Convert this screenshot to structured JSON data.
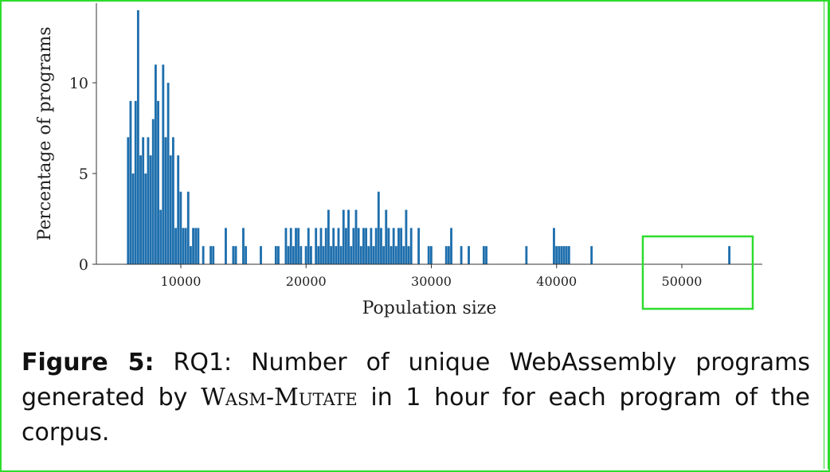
{
  "chart_data": {
    "type": "bar",
    "title": "",
    "xlabel": "Population size",
    "ylabel": "Percentage of programs",
    "xlim": [
      3600,
      56000
    ],
    "ylim": [
      0,
      14
    ],
    "bin_width": 200,
    "x_ticks": [
      10000,
      20000,
      30000,
      40000,
      50000
    ],
    "x_tick_labels": [
      "10000",
      "20000",
      "30000",
      "40000",
      "50000"
    ],
    "y_ticks": [
      0,
      5,
      10
    ],
    "y_tick_labels": [
      "0",
      "5",
      "10"
    ],
    "bar_color": "#1f6fad",
    "x": [
      5800,
      6000,
      6200,
      6400,
      6600,
      6800,
      7000,
      7200,
      7400,
      7600,
      7800,
      8000,
      8200,
      8400,
      8600,
      8800,
      9000,
      9200,
      9400,
      9600,
      9800,
      10000,
      10200,
      10400,
      10600,
      10800,
      11000,
      11200,
      11400,
      11800,
      12400,
      12600,
      13600,
      14200,
      14400,
      15000,
      15200,
      16400,
      17600,
      17800,
      18400,
      18600,
      18800,
      19000,
      19200,
      19400,
      19600,
      20000,
      20200,
      20400,
      20800,
      21000,
      21200,
      21400,
      21600,
      21800,
      22000,
      22200,
      22400,
      22600,
      22800,
      23000,
      23200,
      23400,
      23600,
      23800,
      24000,
      24200,
      24400,
      24600,
      24800,
      25000,
      25200,
      25400,
      25600,
      25800,
      26000,
      26200,
      26400,
      26600,
      26800,
      27000,
      27200,
      27400,
      27600,
      27800,
      28000,
      28200,
      28400,
      29000,
      29800,
      30000,
      31200,
      31400,
      31600,
      32400,
      33000,
      34200,
      34400,
      37600,
      39800,
      40000,
      40200,
      40400,
      40600,
      40800,
      41000,
      42800,
      53800
    ],
    "values": [
      7,
      9,
      5,
      9,
      14,
      6,
      7,
      5,
      7,
      6,
      8,
      11,
      9,
      3,
      11,
      7,
      10,
      6,
      7,
      2,
      6,
      4,
      2,
      2,
      4,
      1,
      2,
      2,
      2,
      1,
      1,
      1,
      2,
      1,
      1,
      2,
      1,
      1,
      1,
      1,
      2,
      1,
      2,
      1,
      2,
      2,
      1,
      1,
      2,
      1,
      2,
      1,
      2,
      1,
      2,
      3,
      1,
      2,
      1,
      2,
      1,
      3,
      2,
      3,
      1,
      2,
      3,
      2,
      1,
      2,
      2,
      1,
      2,
      1,
      2,
      4,
      2,
      1,
      3,
      2,
      1,
      2,
      1,
      2,
      2,
      1,
      3,
      1,
      2,
      2,
      1,
      1,
      1,
      1,
      2,
      1,
      1,
      1,
      1,
      1,
      2,
      1,
      1,
      1,
      1,
      1,
      1,
      1,
      1
    ]
  },
  "highlight": {
    "color": "#2edc2e"
  },
  "caption": {
    "figure_label": "Figure 5:",
    "text_before": " RQ1: Number of unique WebAssembly programs generated by ",
    "tool_name": "Wasm-Mutate",
    "text_after": " in 1 hour for each program of the corpus."
  }
}
